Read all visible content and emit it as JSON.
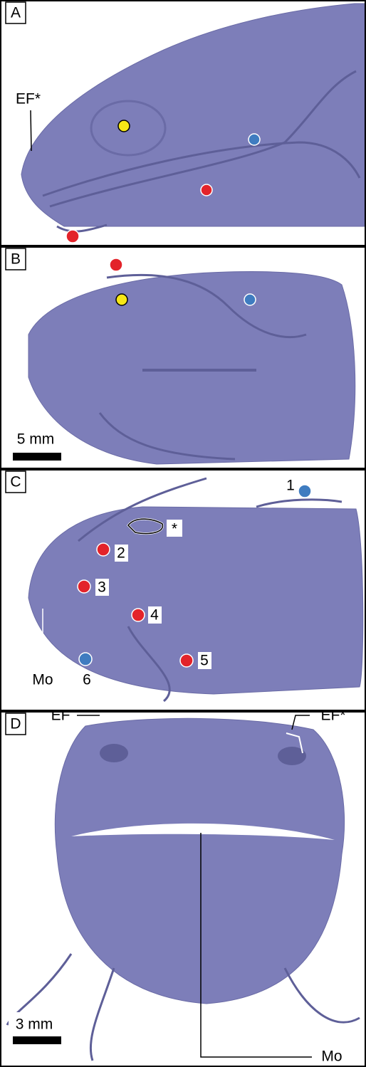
{
  "panels": [
    {
      "label": "A",
      "annotations": [
        "EF*"
      ]
    },
    {
      "label": "B",
      "scale_bar": "5 mm"
    },
    {
      "label": "C",
      "markers": [
        "1",
        "2",
        "3",
        "4",
        "5",
        "6"
      ],
      "asterisk": "*",
      "annotations": [
        "Mo"
      ]
    },
    {
      "label": "D",
      "annotations": [
        "EF",
        "EF*",
        "Mo"
      ],
      "scale_bar": "3 mm"
    }
  ]
}
